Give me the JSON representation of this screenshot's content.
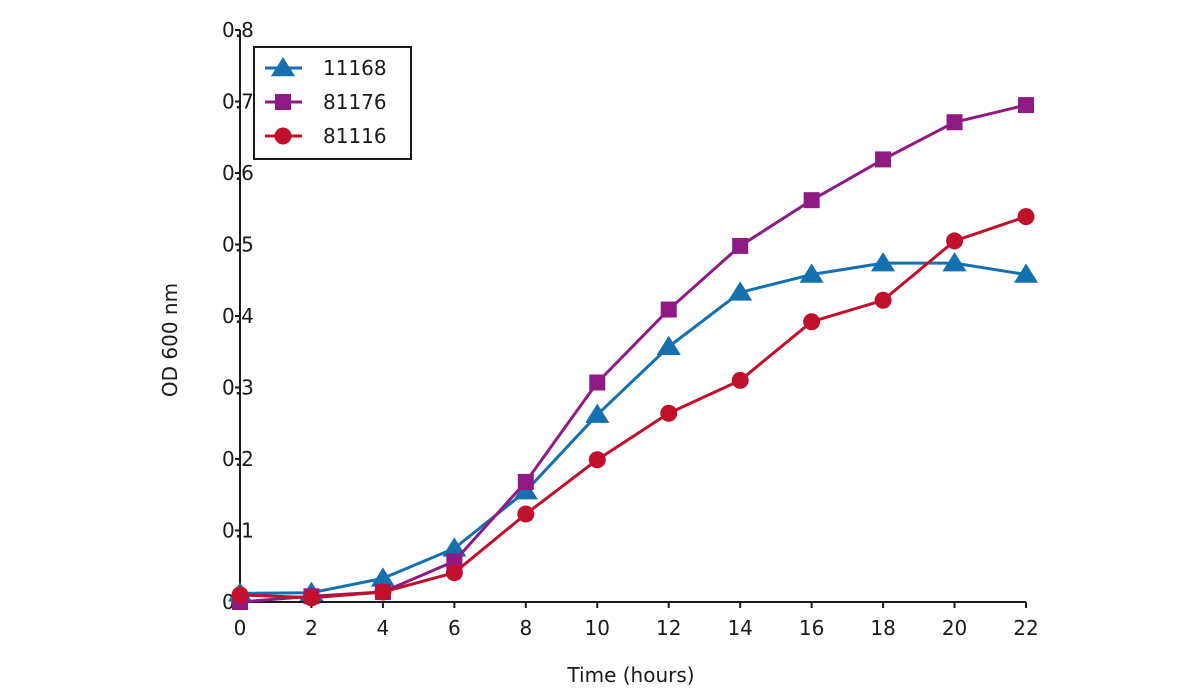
{
  "chart_data": {
    "type": "line",
    "title": "",
    "xlabel": "Time (hours)",
    "ylabel": "OD 600 nm",
    "xlim": [
      0,
      22
    ],
    "ylim": [
      0,
      0.8
    ],
    "x_ticks": [
      0,
      2,
      4,
      6,
      8,
      10,
      12,
      14,
      16,
      18,
      20,
      22
    ],
    "x_tick_labels": [
      "0",
      "2",
      "4",
      "6",
      "8",
      "10",
      "12",
      "14",
      "16",
      "18",
      "20",
      "22"
    ],
    "y_ticks": [
      0,
      0.1,
      0.2,
      0.3,
      0.4,
      0.5,
      0.6,
      0.7,
      0.8
    ],
    "y_tick_labels": [
      "0",
      "0.1",
      "0.2",
      "0.3",
      "0.4",
      "0.5",
      "0.6",
      "0.7",
      "0.8"
    ],
    "grid": false,
    "legend_position": "top-left",
    "x": [
      0,
      2,
      4,
      6,
      8,
      10,
      12,
      14,
      16,
      18,
      20,
      22
    ],
    "series": [
      {
        "name": "11168",
        "marker": "triangle",
        "color": "#1570b0",
        "values": [
          0.012,
          0.013,
          0.033,
          0.075,
          0.155,
          0.262,
          0.357,
          0.433,
          0.458,
          0.474,
          0.474,
          0.458
        ]
      },
      {
        "name": "81176",
        "marker": "square",
        "color": "#8f1a84",
        "values": [
          0.0,
          0.008,
          0.014,
          0.057,
          0.168,
          0.307,
          0.409,
          0.498,
          0.562,
          0.619,
          0.671,
          0.695
        ]
      },
      {
        "name": "81116",
        "marker": "circle",
        "color": "#c0102c",
        "values": [
          0.01,
          0.006,
          0.014,
          0.041,
          0.123,
          0.199,
          0.264,
          0.31,
          0.392,
          0.422,
          0.505,
          0.539
        ]
      }
    ]
  }
}
